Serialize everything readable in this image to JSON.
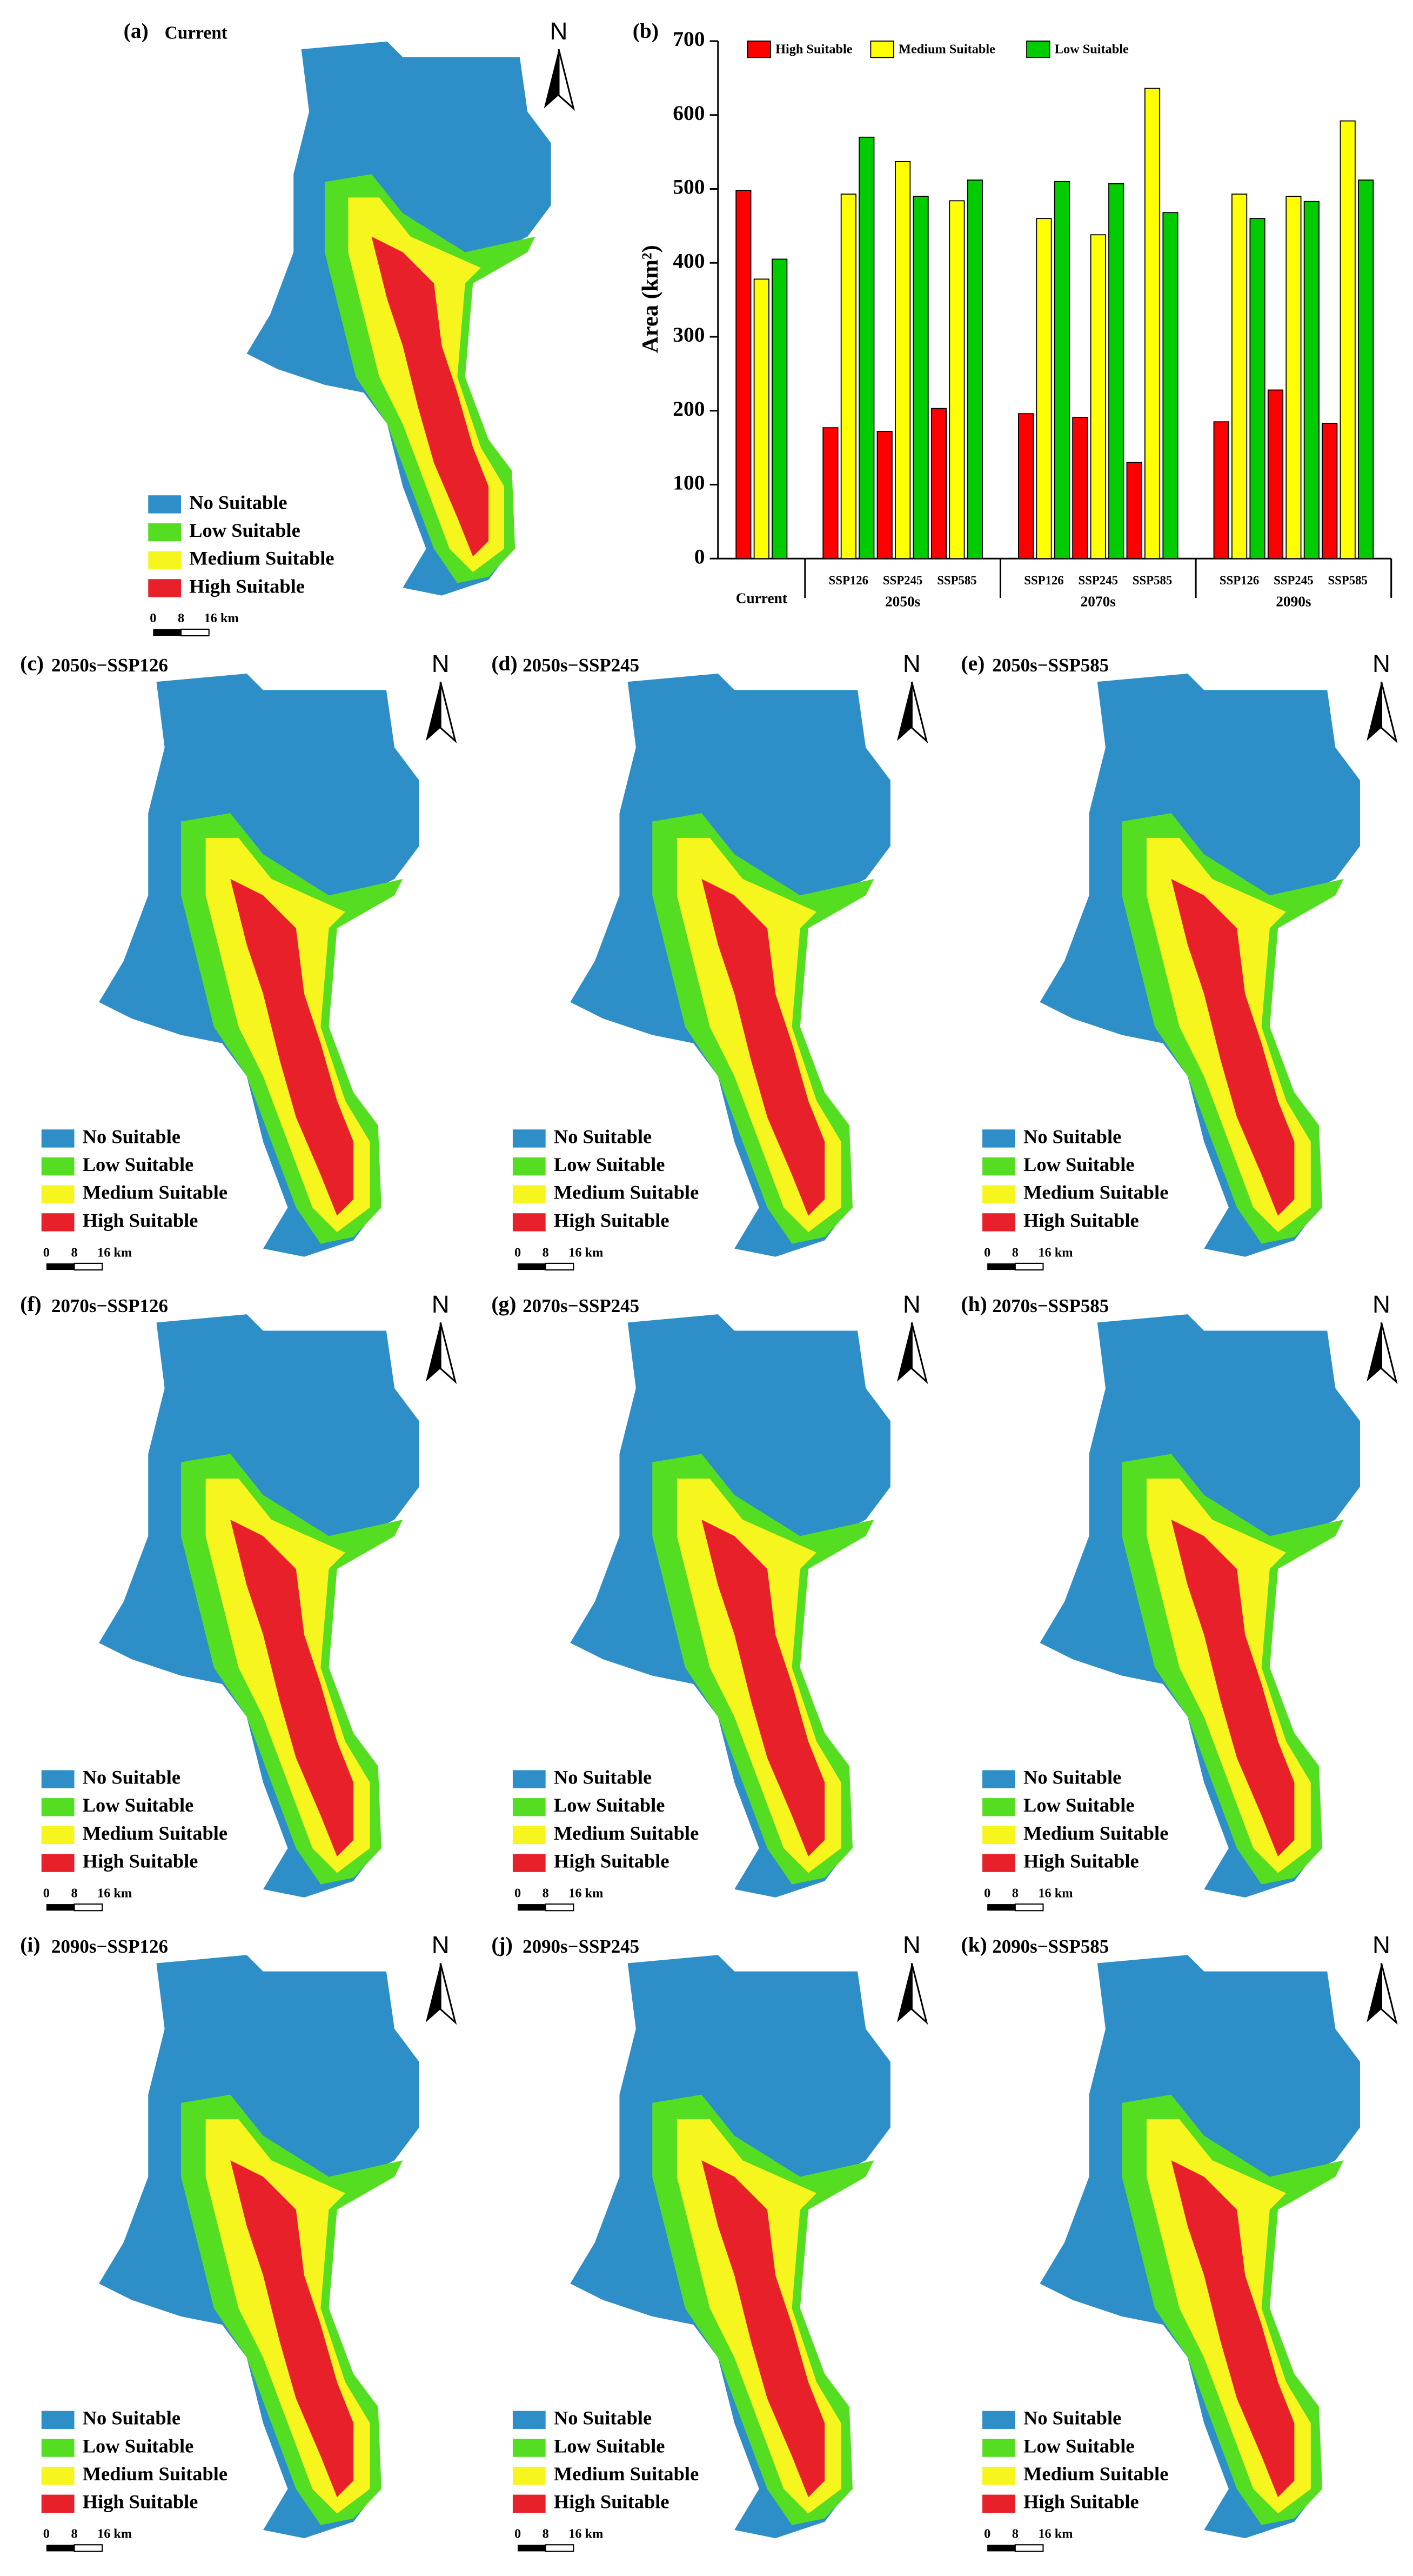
{
  "chart_data": {
    "type": "bar",
    "panel_label": "(b)",
    "y_label": "Area (km²)",
    "groups": [
      {
        "categories": [
          "Current"
        ]
      },
      {
        "label": "2050s",
        "categories": [
          "SSP126",
          "SSP245",
          "SSP585"
        ]
      },
      {
        "label": "2070s",
        "categories": [
          "SSP126",
          "SSP245",
          "SSP585"
        ]
      },
      {
        "label": "2090s",
        "categories": [
          "SSP126",
          "SSP245",
          "SSP585"
        ]
      }
    ],
    "series": [
      {
        "name": "High Suitable",
        "color": "#ff0000",
        "values": [
          498,
          177,
          172,
          203,
          196,
          191,
          130,
          185,
          228,
          183
        ]
      },
      {
        "name": "Medium Suitable",
        "color": "#ffff00",
        "values": [
          378,
          493,
          537,
          484,
          460,
          438,
          636,
          493,
          490,
          592
        ]
      },
      {
        "name": "Low Suitable",
        "color": "#00cc00",
        "values": [
          405,
          570,
          490,
          512,
          510,
          507,
          468,
          460,
          483,
          512
        ]
      }
    ],
    "ylim": [
      0,
      700
    ],
    "yticks": [
      0,
      100,
      200,
      300,
      400,
      500,
      600,
      700
    ]
  },
  "maps": [
    {
      "label": "(a)",
      "title": "Current"
    },
    {
      "label": "(c)",
      "title": "2050s−SSP126"
    },
    {
      "label": "(d)",
      "title": "2050s−SSP245"
    },
    {
      "label": "(e)",
      "title": "2050s−SSP585"
    },
    {
      "label": "(f)",
      "title": "2070s−SSP126"
    },
    {
      "label": "(g)",
      "title": "2070s−SSP245"
    },
    {
      "label": "(h)",
      "title": "2070s−SSP585"
    },
    {
      "label": "(i)",
      "title": "2090s−SSP126"
    },
    {
      "label": "(j)",
      "title": "2090s−SSP245"
    },
    {
      "label": "(k)",
      "title": "2090s−SSP585"
    }
  ],
  "map_legend": [
    {
      "label": "No Suitable",
      "color": "#2e8fc8"
    },
    {
      "label": "Low Suitable",
      "color": "#55dd22"
    },
    {
      "label": "Medium Suitable",
      "color": "#f6f61e"
    },
    {
      "label": "High Suitable",
      "color": "#e8202a"
    }
  ],
  "scale_labels": [
    "0",
    "8",
    "16 km"
  ],
  "north": "N"
}
